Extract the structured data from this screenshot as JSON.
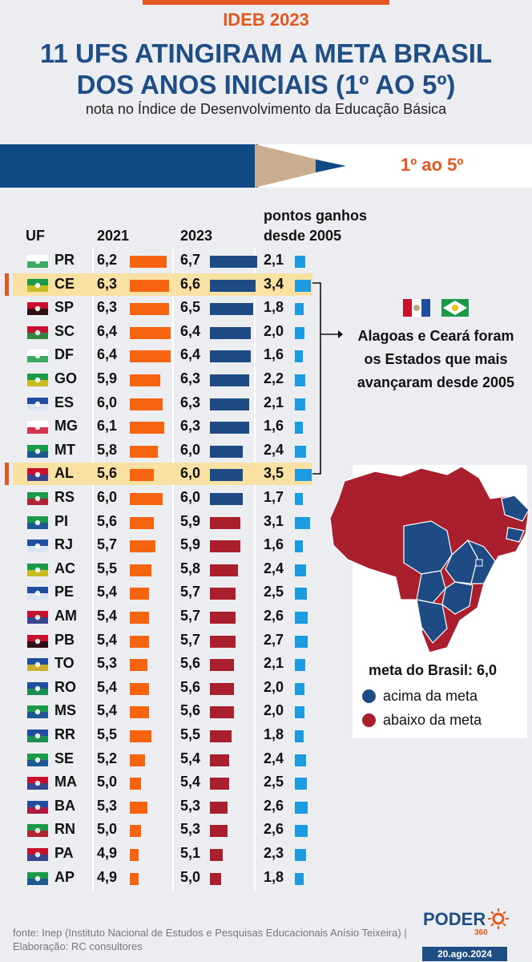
{
  "header": {
    "kicker": "IDEB 2023",
    "title_line1": "11 UFS ATINGIRAM A META BRASIL",
    "title_line2": "DOS ANOS INICIAIS (1º AO 5º)",
    "subtitle": "nota no Índice de Desenvolvimento da Educação Básica",
    "pencil_label": "1º ao 5º"
  },
  "columns": {
    "uf": "UF",
    "y2021": "2021",
    "y2023": "2023",
    "gain_line1": "pontos ganhos",
    "gain_line2": "desde 2005"
  },
  "callout": {
    "line1": "Alagoas e Ceará foram",
    "line2": "os Estados que mais",
    "line3": "avançaram desde 2005"
  },
  "legend": {
    "meta": "meta do Brasil: 6,0",
    "above": "acima da meta",
    "below": "abaixo da meta"
  },
  "footer": {
    "source": "fonte: Inep (Instituto Nacional de Estudos e Pesquisas Educacionais Anísio Teixeira) |",
    "credit": "Elaboração: RC consultores",
    "brand": "PODER",
    "brand_sub": "360",
    "date": "20.ago.2024"
  },
  "colors": {
    "orange": "#f6640f",
    "above": "#1f4b85",
    "below": "#aa1f2e",
    "gain": "#1d9be0",
    "highlight": "#f8e1a3"
  },
  "chart_data": {
    "type": "table",
    "title": "11 UFS ATINGIRAM A META BRASIL DOS ANOS INICIAIS (1º AO 5º)",
    "goal": 6.0,
    "rows": [
      {
        "uf": "PR",
        "v2021": "6,2",
        "v2023": "6,7",
        "gain": "2,1",
        "above": true,
        "highlight": false
      },
      {
        "uf": "CE",
        "v2021": "6,3",
        "v2023": "6,6",
        "gain": "3,4",
        "above": true,
        "highlight": true
      },
      {
        "uf": "SP",
        "v2021": "6,3",
        "v2023": "6,5",
        "gain": "1,8",
        "above": true,
        "highlight": false
      },
      {
        "uf": "SC",
        "v2021": "6,4",
        "v2023": "6,4",
        "gain": "2,0",
        "above": true,
        "highlight": false
      },
      {
        "uf": "DF",
        "v2021": "6,4",
        "v2023": "6,4",
        "gain": "1,6",
        "above": true,
        "highlight": false
      },
      {
        "uf": "GO",
        "v2021": "5,9",
        "v2023": "6,3",
        "gain": "2,2",
        "above": true,
        "highlight": false
      },
      {
        "uf": "ES",
        "v2021": "6,0",
        "v2023": "6,3",
        "gain": "2,1",
        "above": true,
        "highlight": false
      },
      {
        "uf": "MG",
        "v2021": "6,1",
        "v2023": "6,3",
        "gain": "1,6",
        "above": true,
        "highlight": false
      },
      {
        "uf": "MT",
        "v2021": "5,8",
        "v2023": "6,0",
        "gain": "2,4",
        "above": true,
        "highlight": false
      },
      {
        "uf": "AL",
        "v2021": "5,6",
        "v2023": "6,0",
        "gain": "3,5",
        "above": true,
        "highlight": true
      },
      {
        "uf": "RS",
        "v2021": "6,0",
        "v2023": "6,0",
        "gain": "1,7",
        "above": true,
        "highlight": false
      },
      {
        "uf": "PI",
        "v2021": "5,6",
        "v2023": "5,9",
        "gain": "3,1",
        "above": false,
        "highlight": false
      },
      {
        "uf": "RJ",
        "v2021": "5,7",
        "v2023": "5,9",
        "gain": "1,6",
        "above": false,
        "highlight": false
      },
      {
        "uf": "AC",
        "v2021": "5,5",
        "v2023": "5,8",
        "gain": "2,4",
        "above": false,
        "highlight": false
      },
      {
        "uf": "PE",
        "v2021": "5,4",
        "v2023": "5,7",
        "gain": "2,5",
        "above": false,
        "highlight": false
      },
      {
        "uf": "AM",
        "v2021": "5,4",
        "v2023": "5,7",
        "gain": "2,6",
        "above": false,
        "highlight": false
      },
      {
        "uf": "PB",
        "v2021": "5,4",
        "v2023": "5,7",
        "gain": "2,7",
        "above": false,
        "highlight": false
      },
      {
        "uf": "TO",
        "v2021": "5,3",
        "v2023": "5,6",
        "gain": "2,1",
        "above": false,
        "highlight": false
      },
      {
        "uf": "RO",
        "v2021": "5,4",
        "v2023": "5,6",
        "gain": "2,0",
        "above": false,
        "highlight": false
      },
      {
        "uf": "MS",
        "v2021": "5,4",
        "v2023": "5,6",
        "gain": "2,0",
        "above": false,
        "highlight": false
      },
      {
        "uf": "RR",
        "v2021": "5,5",
        "v2023": "5,5",
        "gain": "1,8",
        "above": false,
        "highlight": false
      },
      {
        "uf": "SE",
        "v2021": "5,2",
        "v2023": "5,4",
        "gain": "2,4",
        "above": false,
        "highlight": false
      },
      {
        "uf": "MA",
        "v2021": "5,0",
        "v2023": "5,4",
        "gain": "2,5",
        "above": false,
        "highlight": false
      },
      {
        "uf": "BA",
        "v2021": "5,3",
        "v2023": "5,3",
        "gain": "2,6",
        "above": false,
        "highlight": false
      },
      {
        "uf": "RN",
        "v2021": "5,0",
        "v2023": "5,3",
        "gain": "2,6",
        "above": false,
        "highlight": false
      },
      {
        "uf": "PA",
        "v2021": "4,9",
        "v2023": "5,1",
        "gain": "2,3",
        "above": false,
        "highlight": false
      },
      {
        "uf": "AP",
        "v2021": "4,9",
        "v2023": "5,0",
        "gain": "1,8",
        "above": false,
        "highlight": false
      }
    ]
  }
}
